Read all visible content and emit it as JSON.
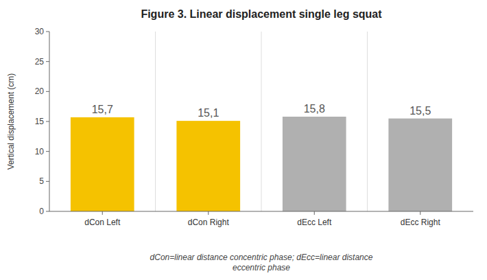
{
  "chart_data": {
    "type": "bar",
    "title": "Figure 3. Linear displacement single leg squat",
    "categories": [
      "dCon Left",
      "dCon Right",
      "dEcc Left",
      "dEcc Right"
    ],
    "values": [
      15.7,
      15.1,
      15.8,
      15.5
    ],
    "value_labels": [
      "15,7",
      "15,1",
      "15,8",
      "15,5"
    ],
    "data_labels": true,
    "colors": [
      "#F5C200",
      "#F5C200",
      "#B0B0B0",
      "#B0B0B0"
    ],
    "y_label": "Vertical displacement (cm)",
    "ylim": [
      0,
      30
    ],
    "yticks": [
      0,
      5,
      10,
      15,
      20,
      25,
      30
    ],
    "grid": false,
    "annotations": [
      "dCon=linear distance concentric phase; dEcc=linear distance",
      "eccentric phase"
    ]
  }
}
